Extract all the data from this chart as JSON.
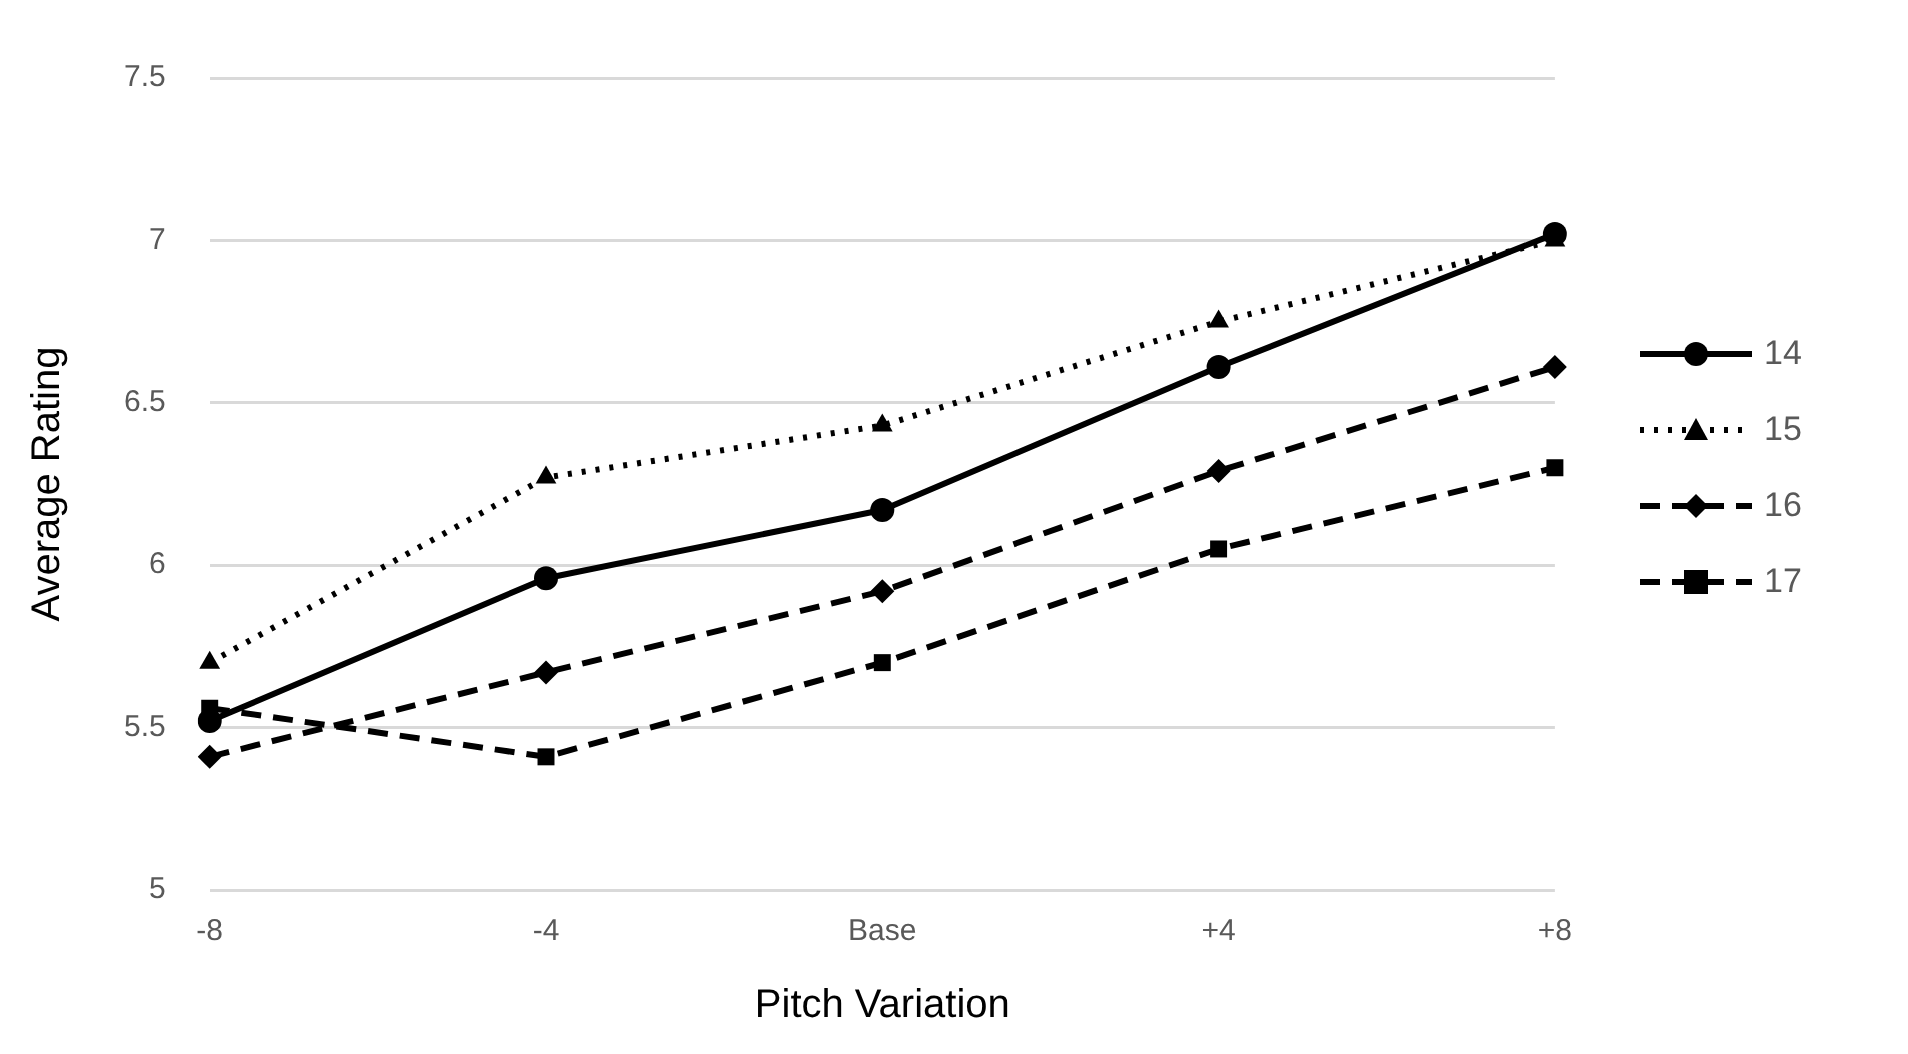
{
  "chart_data": {
    "type": "line",
    "xlabel": "Pitch Variation",
    "ylabel": "Average Rating",
    "categories": [
      "-8",
      "-4",
      "Base",
      "+4",
      "+8"
    ],
    "ylim": [
      5,
      7.5
    ],
    "yticks": [
      5,
      5.5,
      6,
      6.5,
      7,
      7.5
    ],
    "grid": "y",
    "legend": "right",
    "series": [
      {
        "name": "14",
        "color": "#000000",
        "marker": "circle",
        "line_style": "solid",
        "values": [
          5.52,
          5.96,
          6.17,
          6.61,
          7.02
        ]
      },
      {
        "name": "15",
        "color": "#000000",
        "marker": "triangle",
        "line_style": "dotted",
        "values": [
          5.7,
          6.27,
          6.43,
          6.75,
          7.0
        ]
      },
      {
        "name": "16",
        "color": "#000000",
        "marker": "diamond",
        "line_style": "dashed",
        "values": [
          5.41,
          5.67,
          5.92,
          6.29,
          6.61
        ]
      },
      {
        "name": "17",
        "color": "#000000",
        "marker": "square",
        "line_style": "dashed",
        "values": [
          5.56,
          5.41,
          5.7,
          6.05,
          6.3
        ]
      }
    ]
  }
}
